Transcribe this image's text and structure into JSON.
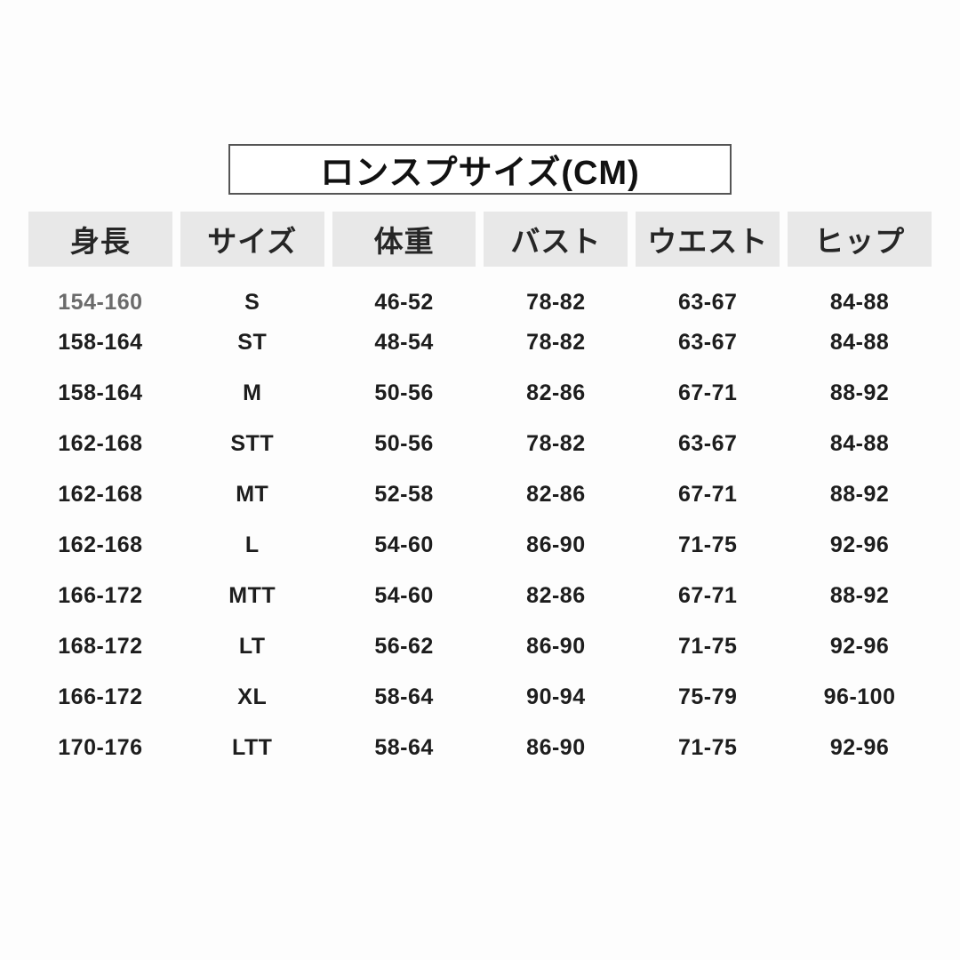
{
  "title": "ロンスプサイズ(CM)",
  "colors": {
    "header_bg": "#e8e8e8",
    "text": "#1d1d1d",
    "header_text": "#262626",
    "muted_first_height": "#6b6b6b",
    "title_border": "#555555",
    "page_bg": "#fdfdfd"
  },
  "chart_data": {
    "type": "table",
    "title": "ロンスプサイズ(CM)",
    "unit": "CM",
    "columns": [
      "身長",
      "サイズ",
      "体重",
      "バスト",
      "ウエスト",
      "ヒップ"
    ],
    "rows": [
      [
        "154-160",
        "S",
        "46-52",
        "78-82",
        "63-67",
        "84-88"
      ],
      [
        "158-164",
        "ST",
        "48-54",
        "78-82",
        "63-67",
        "84-88"
      ],
      [
        "158-164",
        "M",
        "50-56",
        "82-86",
        "67-71",
        "88-92"
      ],
      [
        "162-168",
        "STT",
        "50-56",
        "78-82",
        "63-67",
        "84-88"
      ],
      [
        "162-168",
        "MT",
        "52-58",
        "82-86",
        "67-71",
        "88-92"
      ],
      [
        "162-168",
        "L",
        "54-60",
        "86-90",
        "71-75",
        "92-96"
      ],
      [
        "166-172",
        "MTT",
        "54-60",
        "82-86",
        "67-71",
        "88-92"
      ],
      [
        "168-172",
        "LT",
        "56-62",
        "86-90",
        "71-75",
        "92-96"
      ],
      [
        "166-172",
        "XL",
        "58-64",
        "90-94",
        "75-79",
        "96-100"
      ],
      [
        "170-176",
        "LTT",
        "58-64",
        "86-90",
        "71-75",
        "92-96"
      ]
    ]
  }
}
